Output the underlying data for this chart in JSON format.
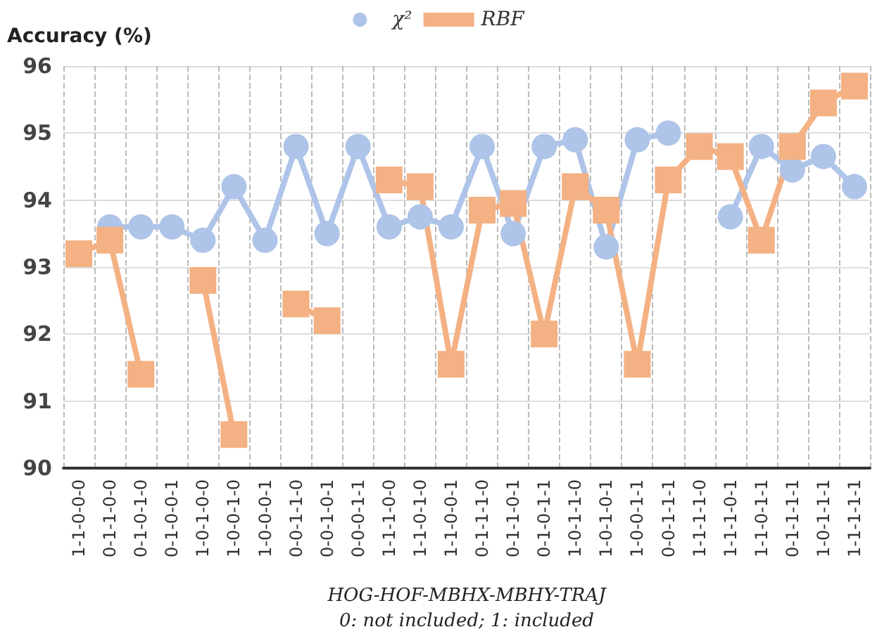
{
  "chart_data": {
    "type": "line",
    "ylabel": "Accuracy (%)",
    "xlabel": "HOG-HOF-MBHX-MBHY-TRAJ\n0: not included; 1: included",
    "categories": [
      "1-1-0-0-0",
      "0-1-1-0-0",
      "0-1-0-1-0",
      "0-1-0-0-1",
      "1-0-1-0-0",
      "1-0-0-1-0",
      "1-0-0-0-1",
      "0-0-1-1-0",
      "0-0-1-0-1",
      "0-0-0-1-1",
      "1-1-1-0-0",
      "1-1-0-1-0",
      "1-1-0-0-1",
      "0-1-1-1-0",
      "0-1-1-0-1",
      "0-1-0-1-1",
      "1-0-1-1-0",
      "1-0-1-0-1",
      "1-0-0-1-1",
      "0-0-1-1-1",
      "1-1-1-1-0",
      "1-1-1-0-1",
      "1-1-0-1-1",
      "0-1-1-1-1",
      "1-0-1-1-1",
      "1-1-1-1-1"
    ],
    "series": [
      {
        "name": "χ²",
        "color": "#aec4e8",
        "marker": "circle",
        "values": [
          null,
          93.6,
          93.6,
          93.6,
          93.4,
          94.2,
          93.4,
          94.8,
          93.5,
          94.8,
          93.6,
          93.75,
          93.6,
          94.8,
          93.5,
          94.8,
          94.9,
          93.3,
          94.9,
          95.0,
          null,
          93.75,
          94.8,
          94.45,
          94.65,
          94.2
        ]
      },
      {
        "name": "RBF",
        "color": "#f4b183",
        "marker": "square",
        "values": [
          93.2,
          93.4,
          91.4,
          null,
          92.8,
          90.5,
          null,
          92.45,
          92.2,
          null,
          94.3,
          94.2,
          91.55,
          93.85,
          93.95,
          92.0,
          94.2,
          93.85,
          91.55,
          94.3,
          94.8,
          94.65,
          93.4,
          94.8,
          95.45,
          95.7
        ]
      }
    ],
    "ylim": [
      90,
      96
    ],
    "yticks": [
      90,
      91,
      92,
      93,
      94,
      95,
      96
    ],
    "grid": true,
    "legend": "top"
  }
}
